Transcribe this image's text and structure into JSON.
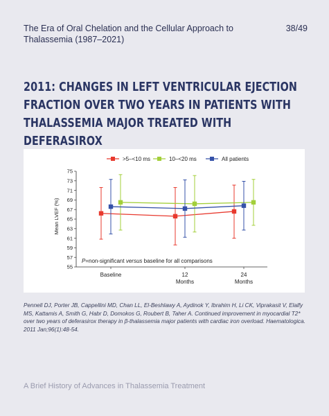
{
  "header": {
    "title": "The Era of Oral Chelation and the Cellular Approach to Thalassemia  (1987–2021)",
    "page_number": "38/49"
  },
  "slide_title": "2011: Changes in left ventricular ejection fraction over two years in patients with thalassemia major treated with deferasirox",
  "citation": "Pennell DJ, Porter JB, Cappellini MD, Chan LL, El-Beshlawy A, Aydinok Y, Ibrahim H, Li CK, Viprakasit V, Elalfy MS, Kattamis A, Smith G, Habr D,  Domokos G, Roubert B, Taher A. Continued improvement in myocardial T2* over two years of deferasirox therapy in β-thalassemia major patients  with cardiac iron overload. Haematologica. 2011 Jan;96(1):48-54.",
  "footer": "A Brief History of Advances in Thalassemia Treatment",
  "chart_data": {
    "type": "line",
    "ylabel": "Mean LVEF (%)",
    "ylim": [
      55,
      75
    ],
    "yticks": [
      "55",
      "57",
      "59",
      "61",
      "63",
      "65",
      "67",
      "69",
      "71",
      "73",
      "75"
    ],
    "categories": [
      {
        "line1": "Baseline",
        "line2": ""
      },
      {
        "line1": "12",
        "line2": "Months"
      },
      {
        "line1": "24",
        "line2": "Months"
      }
    ],
    "annotation_prefix": "P",
    "annotation_mid": "=non-significant ",
    "annotation_italic": "versus",
    "annotation_suffix": " baseline for all comparisons",
    "legend_position": "top",
    "grid": false,
    "series": [
      {
        "name": ">5–<10 ms",
        "color": "#e8392e",
        "values": [
          66.2,
          65.6,
          66.6
        ],
        "low": [
          60.8,
          59.6,
          61.0
        ],
        "high": [
          71.6,
          71.6,
          72.1
        ]
      },
      {
        "name": "10–<20 ms",
        "color": "#a3cf3a",
        "values": [
          68.5,
          68.2,
          68.5
        ],
        "low": [
          62.7,
          62.3,
          63.7
        ],
        "high": [
          74.3,
          74.1,
          73.3
        ]
      },
      {
        "name": "All patients",
        "color": "#3552a8",
        "values": [
          67.6,
          67.2,
          67.8
        ],
        "low": [
          61.9,
          61.2,
          62.7
        ],
        "high": [
          73.3,
          73.2,
          72.9
        ]
      }
    ]
  }
}
